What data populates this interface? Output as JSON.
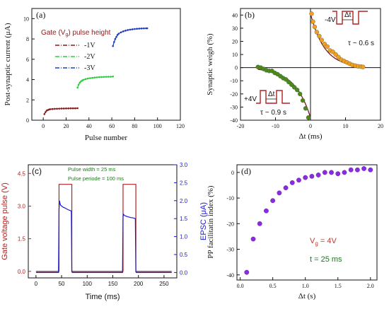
{
  "chart_data": [
    {
      "panel": "(a)",
      "type": "scatter",
      "xlabel": "Pulse number",
      "ylabel": "Post-synaptic current (μA)",
      "xlim": [
        -10,
        120
      ],
      "ylim": [
        0,
        11
      ],
      "xticks": [
        0,
        20,
        40,
        60,
        80,
        100,
        120
      ],
      "yticks": [
        0,
        2,
        4,
        6,
        8,
        10
      ],
      "grid": false,
      "legend_title": "Gate (V",
      "legend_title_sub": "g",
      "legend_title_tail": ") pulse height",
      "legend_position": "top-left",
      "series": [
        {
          "name": "-1V",
          "color": "#8b1a1a",
          "line_style": "dash-dot",
          "x": [
            1,
            2,
            3,
            4,
            5,
            6,
            8,
            10,
            12,
            14,
            16,
            18,
            20,
            22,
            24,
            26,
            28,
            30
          ],
          "y": [
            0.6,
            0.8,
            0.95,
            1.0,
            1.05,
            1.08,
            1.1,
            1.12,
            1.13,
            1.14,
            1.15,
            1.15,
            1.16,
            1.16,
            1.17,
            1.17,
            1.17,
            1.18
          ]
        },
        {
          "name": "-2V",
          "color": "#2ecc40",
          "line_style": "dash-dot",
          "x": [
            30,
            31,
            32,
            33,
            34,
            35,
            37,
            39,
            41,
            43,
            45,
            47,
            49,
            51,
            53,
            55,
            57,
            59,
            61
          ],
          "y": [
            3.2,
            3.5,
            3.7,
            3.82,
            3.9,
            3.97,
            4.05,
            4.1,
            4.14,
            4.17,
            4.2,
            4.22,
            4.24,
            4.25,
            4.26,
            4.27,
            4.28,
            4.28,
            4.3
          ]
        },
        {
          "name": "-3V",
          "color": "#1f3fbf",
          "line_style": "dash-dot",
          "x": [
            61,
            62,
            63,
            64,
            65,
            66,
            68,
            70,
            72,
            74,
            76,
            78,
            80,
            82,
            84,
            86,
            88,
            90,
            91
          ],
          "y": [
            7.3,
            7.7,
            8.0,
            8.2,
            8.4,
            8.52,
            8.65,
            8.75,
            8.82,
            8.88,
            8.92,
            8.95,
            8.98,
            9.0,
            9.02,
            9.03,
            9.04,
            9.05,
            9.05
          ]
        }
      ]
    },
    {
      "panel": "(b)",
      "type": "scatter",
      "xlabel": "Δt (ms)",
      "ylabel": "Synaptic weigh (%)",
      "xlim": [
        -20,
        20
      ],
      "ylim": [
        -40,
        45
      ],
      "xticks": [
        -20,
        -10,
        0,
        10,
        20
      ],
      "yticks": [
        -40,
        -30,
        -20,
        -10,
        0,
        10,
        20,
        30,
        40
      ],
      "grid": false,
      "series": [
        {
          "name": "",
          "color": "#f0a020",
          "x": [
            0.3,
            0.7,
            1.2,
            1.8,
            2.5,
            3.2,
            4.0,
            4.8,
            5.6,
            6.4,
            7.2,
            8.0,
            8.8,
            9.6,
            10.4,
            11.2,
            12.0,
            12.8,
            13.6,
            14.4,
            15.0
          ],
          "y": [
            41,
            35,
            31,
            27,
            24,
            21,
            18,
            16,
            13,
            12,
            10,
            8,
            6,
            5,
            4,
            3,
            2,
            1.5,
            1,
            0.8,
            0.5
          ]
        },
        {
          "name": "",
          "color": "#4a8a1a",
          "x": [
            -15,
            -14.2,
            -13.4,
            -12.6,
            -11.8,
            -11.0,
            -10.2,
            -9.4,
            -8.6,
            -7.8,
            -7.0,
            -6.2,
            -5.4,
            -4.6,
            -3.8,
            -3.0,
            -2.2,
            -1.4,
            -0.6
          ],
          "y": [
            0.5,
            0,
            -1,
            -2,
            -2.5,
            -2.5,
            -4,
            -5,
            -6.5,
            -8,
            -9,
            -11,
            -13,
            -15,
            -17,
            -20,
            -25,
            -31,
            -38
          ]
        }
      ],
      "fits": [
        {
          "name": "",
          "color": "#7a1a1a",
          "amplitude": 41,
          "tau": 4,
          "domain": [
            0,
            15
          ]
        },
        {
          "name": "",
          "color": "#7a1a1a",
          "amplitude": -38,
          "tau": 4.5,
          "domain": [
            -15,
            0
          ]
        }
      ],
      "annotations": [
        {
          "label": "-4V",
          "text": "τ ~ 0.6 s"
        },
        {
          "label": "+4V",
          "text": "τ ~ 0.9 s"
        }
      ],
      "inset_symbol": "Δt"
    },
    {
      "panel": "(c)",
      "type": "line",
      "xlabel": "Time (ms)",
      "ylabel_left": "Gate voltage pulse (V)",
      "ylabel_right": "EPSC (μA)",
      "xlim": [
        -15,
        275
      ],
      "ylim_left": [
        -0.3,
        4.9
      ],
      "ylim_right": [
        -0.15,
        3.0
      ],
      "xticks": [
        0,
        50,
        100,
        150,
        200,
        250
      ],
      "yticks_left": [
        0.0,
        1.5,
        3.0,
        4.5
      ],
      "yticks_right": [
        0.0,
        0.5,
        1.0,
        1.5,
        2.0,
        2.5,
        3.0
      ],
      "grid": false,
      "notes": [
        "Pulse width = 25 ms",
        "Pulse periode = 100 ms"
      ],
      "series": [
        {
          "name": "Gate voltage pulse",
          "color": "#b22222",
          "x": [
            0,
            45,
            45,
            70,
            70,
            170,
            170,
            195,
            195,
            265
          ],
          "y": [
            0,
            0,
            4.0,
            4.0,
            0,
            0,
            4.0,
            4.0,
            0,
            0
          ]
        },
        {
          "name": "EPSC",
          "color": "#1a1acc",
          "x": [
            0,
            44,
            45,
            46,
            47,
            48,
            50,
            53,
            56,
            60,
            64,
            68,
            69,
            70,
            71,
            75,
            100,
            160,
            169,
            170,
            171,
            172,
            175,
            180,
            185,
            190,
            194,
            195,
            196,
            200,
            265
          ],
          "y": [
            0,
            0,
            1.75,
            2.0,
            1.92,
            1.88,
            1.85,
            1.82,
            1.8,
            1.77,
            1.74,
            1.72,
            1.7,
            0.02,
            0,
            0,
            0,
            0,
            0,
            1.55,
            1.62,
            1.6,
            1.57,
            1.55,
            1.53,
            1.52,
            1.5,
            0.02,
            0,
            0,
            0
          ]
        }
      ]
    },
    {
      "panel": "(d)",
      "type": "scatter",
      "xlabel": "Δt (s)",
      "ylabel": "PP facilitatin index (%)",
      "xlim": [
        -0.05,
        2.1
      ],
      "ylim": [
        -42,
        3
      ],
      "xticks": [
        0.0,
        0.5,
        1.0,
        1.5,
        2.0
      ],
      "yticks": [
        -40,
        -30,
        -20,
        -10,
        0
      ],
      "grid": false,
      "text_line1": "V",
      "text_line1_sub": "g",
      "text_line1_tail": " = 4V",
      "text_line2": "t = 25 ms",
      "series": [
        {
          "name": "",
          "color": "#8a2be2",
          "x": [
            0.1,
            0.2,
            0.3,
            0.4,
            0.5,
            0.6,
            0.7,
            0.8,
            0.9,
            1.0,
            1.1,
            1.2,
            1.3,
            1.4,
            1.5,
            1.6,
            1.7,
            1.8,
            1.9,
            2.0
          ],
          "y": [
            -39,
            -26,
            -20,
            -15,
            -11,
            -8,
            -6,
            -4,
            -3,
            -2,
            -1.5,
            -1,
            0,
            0,
            -0.5,
            0,
            1,
            1,
            1.5,
            1
          ]
        }
      ]
    }
  ]
}
